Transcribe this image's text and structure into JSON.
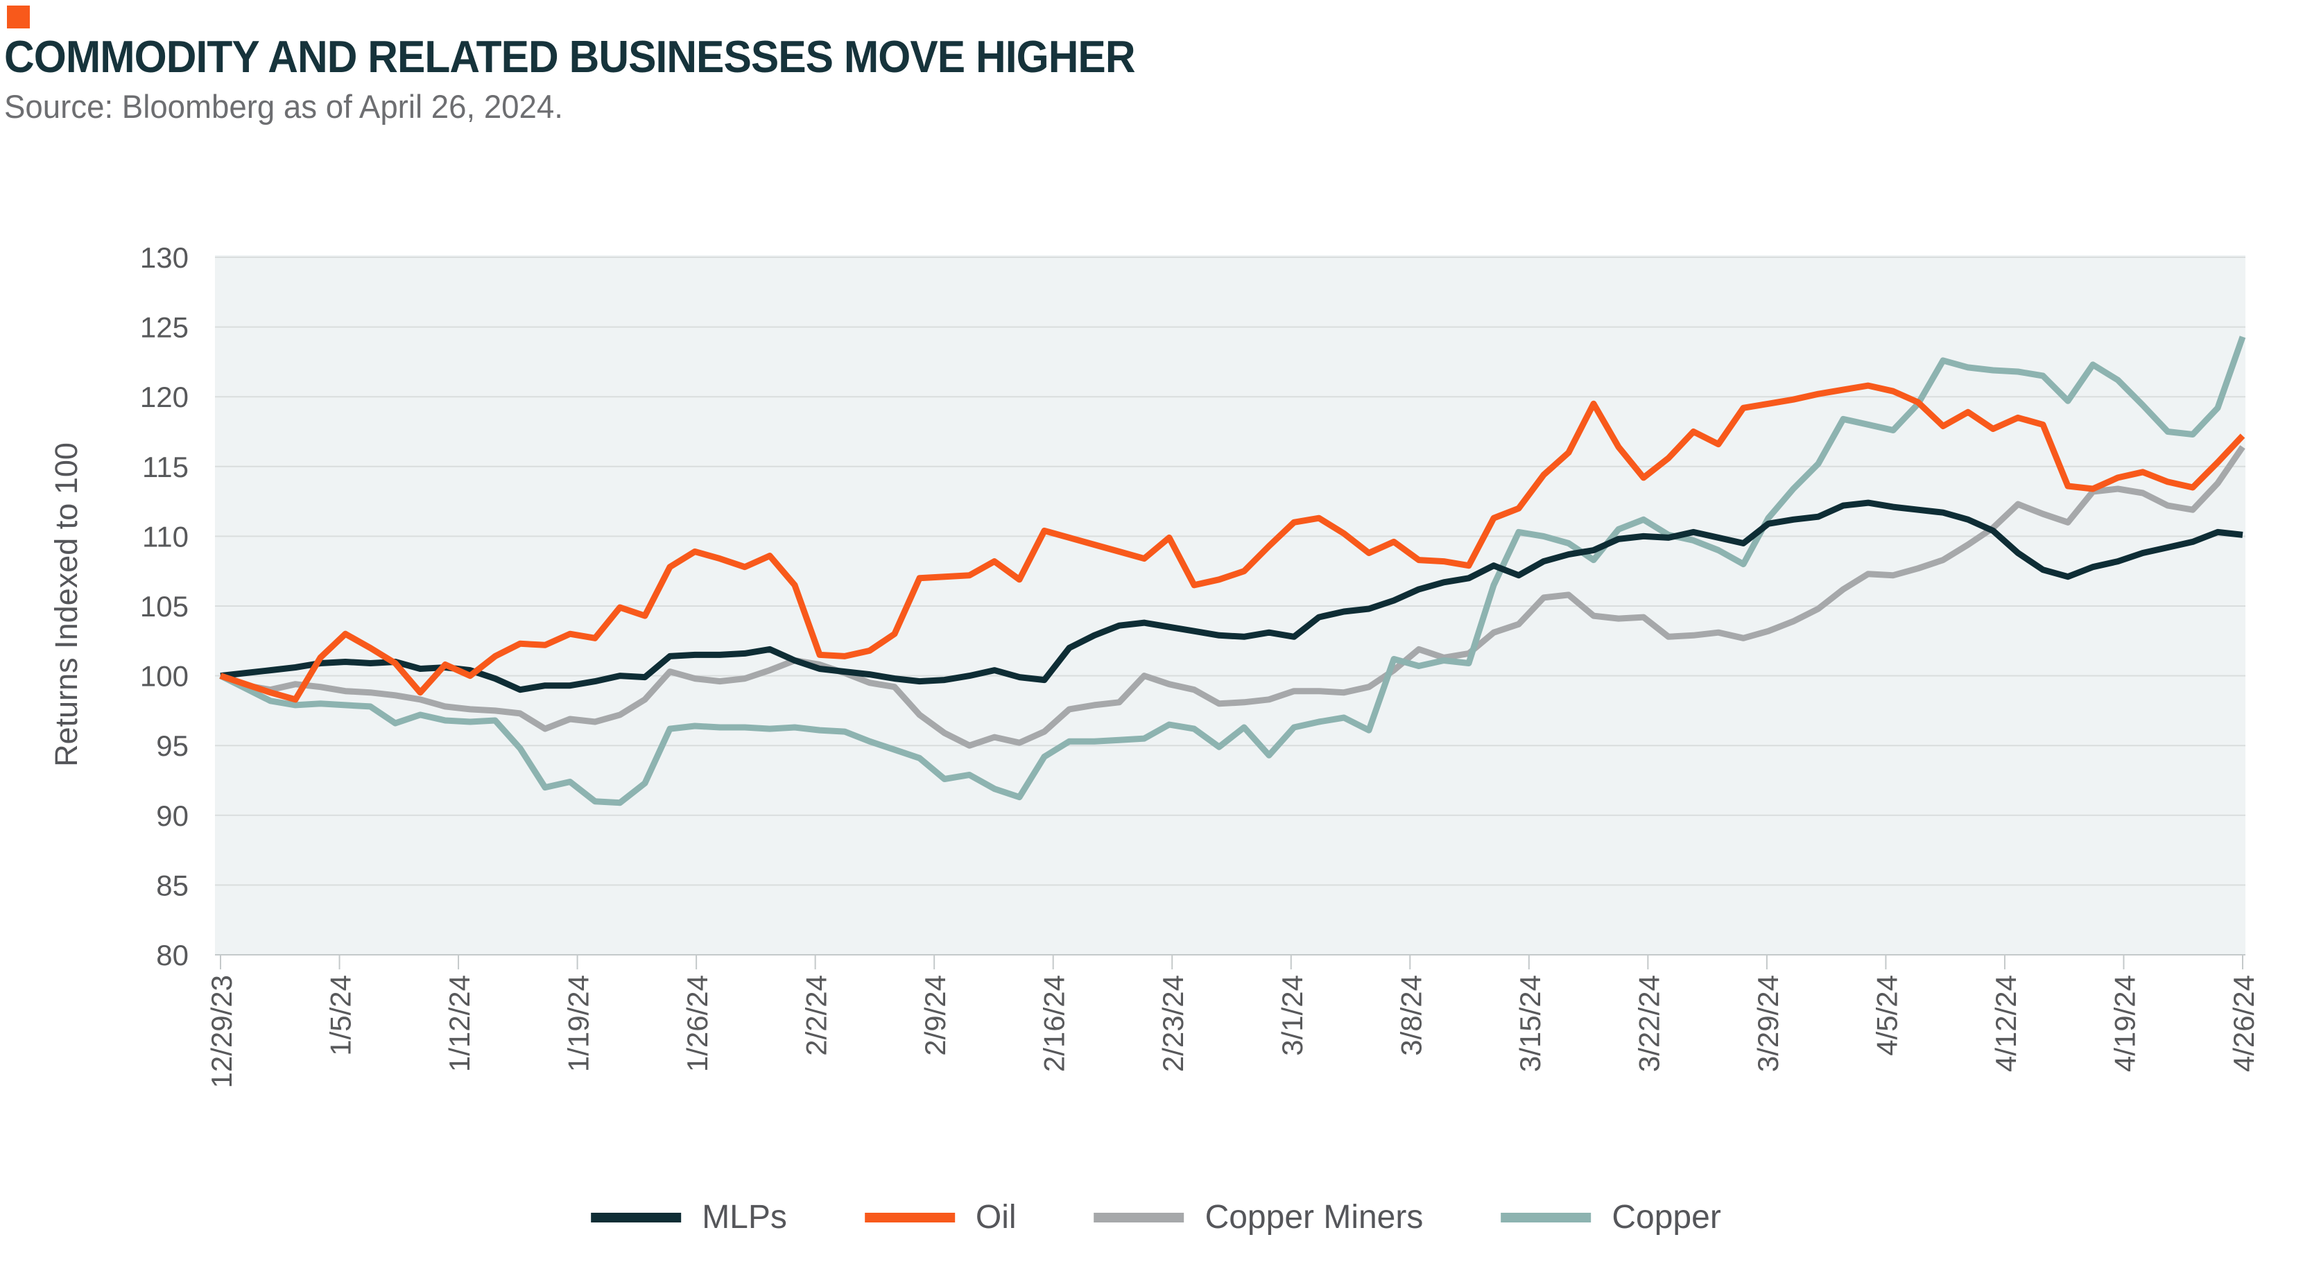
{
  "header": {
    "accent_color": "#F8591B",
    "title": "COMMODITY AND RELATED BUSINESSES MOVE HIGHER",
    "source": "Source: Bloomberg as of April 26, 2024."
  },
  "chart_data": {
    "type": "line",
    "title": "COMMODITY AND RELATED BUSINESSES MOVE HIGHER",
    "xlabel": "",
    "ylabel": "Returns Indexed to 100",
    "ylim": [
      80,
      130
    ],
    "y_ticks": [
      130,
      125,
      120,
      115,
      110,
      105,
      100,
      95,
      90,
      85,
      80
    ],
    "grid": "horizontal",
    "plot_bg": "#EFF3F4",
    "grid_color": "#D9DDDD",
    "axis_color": "#C4C9CA",
    "tick_label_color": "#58595B",
    "legend_position": "bottom",
    "x_tick_labels": [
      "12/29/23",
      "1/5/24",
      "1/12/24",
      "1/19/24",
      "1/26/24",
      "2/2/24",
      "2/9/24",
      "2/16/24",
      "2/23/24",
      "3/1/24",
      "3/8/24",
      "3/15/24",
      "3/22/24",
      "3/29/24",
      "4/5/24",
      "4/12/24",
      "4/19/24",
      "4/26/24"
    ],
    "x": [
      "12/29/23",
      "1/2/24",
      "1/3/24",
      "1/4/24",
      "1/5/24",
      "1/8/24",
      "1/9/24",
      "1/10/24",
      "1/11/24",
      "1/12/24",
      "1/16/24",
      "1/17/24",
      "1/18/24",
      "1/19/24",
      "1/22/24",
      "1/23/24",
      "1/24/24",
      "1/25/24",
      "1/26/24",
      "1/29/24",
      "1/30/24",
      "1/31/24",
      "2/1/24",
      "2/2/24",
      "2/5/24",
      "2/6/24",
      "2/7/24",
      "2/8/24",
      "2/9/24",
      "2/12/24",
      "2/13/24",
      "2/14/24",
      "2/15/24",
      "2/16/24",
      "2/20/24",
      "2/21/24",
      "2/22/24",
      "2/23/24",
      "2/26/24",
      "2/27/24",
      "2/28/24",
      "2/29/24",
      "3/1/24",
      "3/4/24",
      "3/5/24",
      "3/6/24",
      "3/7/24",
      "3/8/24",
      "3/11/24",
      "3/12/24",
      "3/13/24",
      "3/14/24",
      "3/15/24",
      "3/18/24",
      "3/19/24",
      "3/20/24",
      "3/21/24",
      "3/22/24",
      "3/25/24",
      "3/26/24",
      "3/27/24",
      "3/28/24",
      "4/1/24",
      "4/2/24",
      "4/3/24",
      "4/4/24",
      "4/5/24",
      "4/8/24",
      "4/9/24",
      "4/10/24",
      "4/11/24",
      "4/12/24",
      "4/15/24",
      "4/16/24",
      "4/17/24",
      "4/18/24",
      "4/19/24",
      "4/22/24",
      "4/23/24",
      "4/24/24",
      "4/25/24",
      "4/26/24"
    ],
    "series": [
      {
        "name": "MLPs",
        "color": "#0E2D35",
        "values": [
          100.0,
          100.2,
          100.4,
          100.6,
          100.9,
          101.0,
          100.9,
          101.0,
          100.5,
          100.6,
          100.4,
          99.8,
          99.0,
          99.3,
          99.3,
          99.6,
          100.0,
          99.9,
          101.4,
          101.5,
          101.5,
          101.6,
          101.9,
          101.1,
          100.5,
          100.3,
          100.1,
          99.8,
          99.6,
          99.7,
          100.0,
          100.4,
          99.9,
          99.7,
          102.0,
          102.9,
          103.6,
          103.8,
          103.5,
          103.2,
          102.9,
          102.8,
          103.1,
          102.8,
          104.2,
          104.6,
          104.8,
          105.4,
          106.2,
          106.7,
          107.0,
          107.9,
          107.2,
          108.2,
          108.7,
          109.0,
          109.8,
          110.0,
          109.9,
          110.3,
          109.9,
          109.5,
          110.9,
          111.2,
          111.4,
          112.2,
          112.4,
          112.1,
          111.9,
          111.7,
          111.2,
          110.4,
          108.8,
          107.6,
          107.1,
          107.8,
          108.2,
          108.8,
          109.2,
          109.6,
          110.3,
          110.1
        ]
      },
      {
        "name": "Oil",
        "color": "#F8591B",
        "values": [
          100.0,
          99.4,
          98.8,
          98.3,
          101.3,
          103.0,
          102.0,
          100.9,
          98.8,
          100.8,
          100.0,
          101.4,
          102.3,
          102.2,
          103.0,
          102.7,
          104.9,
          104.3,
          107.8,
          108.9,
          108.4,
          107.8,
          108.6,
          106.5,
          101.5,
          101.4,
          101.8,
          103.0,
          107.0,
          107.1,
          107.2,
          108.2,
          106.9,
          110.4,
          109.9,
          109.4,
          108.9,
          108.4,
          109.9,
          106.5,
          106.9,
          107.5,
          109.3,
          111.0,
          111.3,
          110.2,
          108.8,
          109.6,
          108.3,
          108.2,
          107.9,
          111.3,
          112.0,
          114.4,
          116.0,
          119.5,
          116.4,
          114.2,
          115.6,
          117.5,
          116.6,
          119.2,
          119.5,
          119.8,
          120.2,
          120.5,
          120.8,
          120.4,
          119.6,
          117.9,
          118.9,
          117.7,
          118.5,
          118.0,
          113.6,
          113.4,
          114.2,
          114.6,
          113.9,
          113.5,
          115.3,
          117.2
        ]
      },
      {
        "name": "Copper Miners",
        "color": "#A6A8AA",
        "values": [
          100.0,
          99.3,
          99.0,
          99.4,
          99.2,
          98.9,
          98.8,
          98.6,
          98.3,
          97.8,
          97.6,
          97.5,
          97.3,
          96.2,
          96.9,
          96.7,
          97.2,
          98.3,
          100.3,
          99.8,
          99.6,
          99.8,
          100.4,
          101.1,
          100.8,
          100.2,
          99.5,
          99.2,
          97.2,
          95.9,
          95.0,
          95.6,
          95.2,
          96.0,
          97.6,
          97.9,
          98.1,
          100.0,
          99.4,
          99.0,
          98.0,
          98.1,
          98.3,
          98.9,
          98.9,
          98.8,
          99.2,
          100.4,
          101.9,
          101.3,
          101.6,
          103.1,
          103.7,
          105.6,
          105.8,
          104.3,
          104.1,
          104.2,
          102.8,
          102.9,
          103.1,
          102.7,
          103.2,
          103.9,
          104.8,
          106.2,
          107.3,
          107.2,
          107.7,
          108.3,
          109.4,
          110.6,
          112.3,
          111.6,
          111.0,
          113.2,
          113.4,
          113.1,
          112.2,
          111.9,
          113.8,
          116.4
        ]
      },
      {
        "name": "Copper",
        "color": "#8DB3B0",
        "values": [
          100.0,
          99.1,
          98.2,
          97.9,
          98.0,
          97.9,
          97.8,
          96.6,
          97.2,
          96.8,
          96.7,
          96.8,
          94.8,
          92.0,
          92.4,
          91.0,
          90.9,
          92.3,
          96.2,
          96.4,
          96.3,
          96.3,
          96.2,
          96.3,
          96.1,
          96.0,
          95.3,
          94.7,
          94.1,
          92.6,
          92.9,
          91.9,
          91.3,
          94.2,
          95.3,
          95.3,
          95.4,
          95.5,
          96.5,
          96.2,
          94.9,
          96.3,
          94.3,
          96.3,
          96.7,
          97.0,
          96.1,
          101.2,
          100.7,
          101.1,
          100.9,
          106.5,
          110.3,
          110.0,
          109.5,
          108.3,
          110.5,
          111.2,
          110.1,
          109.7,
          109.0,
          108.0,
          111.3,
          113.4,
          115.2,
          118.4,
          118.0,
          117.6,
          119.5,
          122.6,
          122.1,
          121.9,
          121.8,
          121.5,
          119.7,
          122.3,
          121.2,
          119.4,
          117.5,
          117.3,
          119.2,
          124.3
        ]
      }
    ]
  }
}
